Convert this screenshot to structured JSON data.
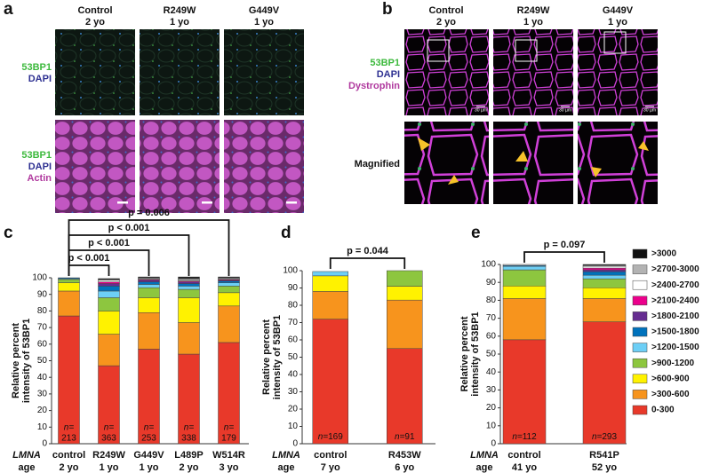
{
  "panels": [
    {
      "letter": "a",
      "columns": [
        [
          "Control",
          "2 yo"
        ],
        [
          "R249W",
          "1 yo"
        ],
        [
          "G449V",
          "1 yo"
        ]
      ],
      "rows": [
        [
          "53BP1",
          "DAPI"
        ],
        [
          "53BP1",
          "DAPI",
          "Actin"
        ]
      ]
    },
    {
      "letter": "b",
      "columns": [
        [
          "Control",
          "2 yo"
        ],
        [
          "R249W",
          "1 yo"
        ],
        [
          "G449V",
          "1 yo"
        ]
      ],
      "rows": [
        [
          "53BP1",
          "DAPI",
          "Dystrophin"
        ],
        [
          "Magnified"
        ]
      ],
      "scale": "30 µm"
    }
  ],
  "chart_data": [
    {
      "type": "bar",
      "stacked": true,
      "letter": "c",
      "ylabel": [
        "Relative percent",
        "intensity of 53BP1"
      ],
      "ylim": [
        0,
        100
      ],
      "yticks": [
        0,
        10,
        20,
        30,
        40,
        50,
        60,
        70,
        80,
        90,
        100
      ],
      "row_labels": [
        "LMNA",
        "age"
      ],
      "categories": [
        "control",
        "R249W",
        "G449V",
        "L489P",
        "W514R"
      ],
      "ages": [
        "2 yo",
        "1 yo",
        "1 yo",
        "2 yo",
        "3 yo"
      ],
      "n_prefix": "n=",
      "n": [
        213,
        363,
        253,
        338,
        179
      ],
      "annotations": [
        {
          "text": "p < 0.001",
          "between": [
            "control",
            "R249W"
          ]
        },
        {
          "text": "p < 0.001",
          "between": [
            "control",
            "G449V"
          ]
        },
        {
          "text": "p < 0.001",
          "between": [
            "control",
            "L489P"
          ]
        },
        {
          "text": "p = 0.006",
          "between": [
            "control",
            "W514R"
          ]
        }
      ],
      "series": [
        {
          "color": "#e8392a",
          "values": [
            77,
            47,
            57,
            54,
            61
          ]
        },
        {
          "color": "#f7941d",
          "values": [
            15,
            19,
            22,
            19,
            22
          ]
        },
        {
          "color": "#fff200",
          "values": [
            5,
            14,
            9,
            15,
            8
          ]
        },
        {
          "color": "#8dc63f",
          "values": [
            2,
            8,
            6,
            5,
            4
          ]
        },
        {
          "color": "#6dcff6",
          "values": [
            0.5,
            4,
            2,
            2,
            2
          ]
        },
        {
          "color": "#0072bc",
          "values": [
            0.5,
            3,
            1.5,
            1.5,
            1
          ]
        },
        {
          "color": "#662d91",
          "values": [
            0,
            1.5,
            1,
            1,
            0.5
          ]
        },
        {
          "color": "#ec008c",
          "values": [
            0,
            1,
            0.5,
            0.5,
            0.5
          ]
        },
        {
          "color": "#ffffff",
          "values": [
            0,
            1,
            0.5,
            0.5,
            0.5
          ]
        },
        {
          "color": "#b3b3b3",
          "values": [
            0,
            0.5,
            0.5,
            1,
            0.5
          ]
        },
        {
          "color": "#111111",
          "values": [
            0,
            0.5,
            0.5,
            1,
            0.5
          ]
        }
      ]
    },
    {
      "type": "bar",
      "stacked": true,
      "letter": "d",
      "ylabel": [
        "Relative percent",
        "intensity of 53BP1"
      ],
      "ylim": [
        0,
        100
      ],
      "yticks": [
        0,
        10,
        20,
        30,
        40,
        50,
        60,
        70,
        80,
        90,
        100
      ],
      "row_labels": [
        "LMNA",
        "age"
      ],
      "categories": [
        "control",
        "R453W"
      ],
      "ages": [
        "7 yo",
        "6 yo"
      ],
      "n_prefix": "n=",
      "n": [
        169,
        91
      ],
      "annotations": [
        {
          "text": "p = 0.044",
          "between": [
            "control",
            "R453W"
          ]
        }
      ],
      "series": [
        {
          "color": "#e8392a",
          "values": [
            72,
            55
          ]
        },
        {
          "color": "#f7941d",
          "values": [
            16,
            28
          ]
        },
        {
          "color": "#fff200",
          "values": [
            9,
            8
          ]
        },
        {
          "color": "#8dc63f",
          "values": [
            0,
            9
          ]
        },
        {
          "color": "#6dcff6",
          "values": [
            2.5,
            0
          ]
        },
        {
          "color": "#0072bc",
          "values": [
            0,
            0
          ]
        },
        {
          "color": "#662d91",
          "values": [
            0,
            0
          ]
        },
        {
          "color": "#ec008c",
          "values": [
            0,
            0
          ]
        },
        {
          "color": "#ffffff",
          "values": [
            0,
            0
          ]
        },
        {
          "color": "#b3b3b3",
          "values": [
            0,
            0
          ]
        },
        {
          "color": "#111111",
          "values": [
            0,
            0
          ]
        }
      ]
    },
    {
      "type": "bar",
      "stacked": true,
      "letter": "e",
      "ylabel": [
        "Relative percent",
        "intensity of 53BP1"
      ],
      "ylim": [
        0,
        100
      ],
      "yticks": [
        0,
        10,
        20,
        30,
        40,
        50,
        60,
        70,
        80,
        90,
        100
      ],
      "row_labels": [
        "LMNA",
        "age"
      ],
      "categories": [
        "control",
        "R541P"
      ],
      "ages": [
        "41 yo",
        "52 yo"
      ],
      "n_prefix": "n=",
      "n": [
        112,
        293
      ],
      "annotations": [
        {
          "text": "p = 0.097",
          "between": [
            "control",
            "R541P"
          ]
        }
      ],
      "legend": "right",
      "series": [
        {
          "name": "0-300",
          "color": "#e8392a",
          "values": [
            58,
            68
          ]
        },
        {
          "name": ">300-600",
          "color": "#f7941d",
          "values": [
            23,
            13
          ]
        },
        {
          "name": ">600-900",
          "color": "#fff200",
          "values": [
            7,
            6
          ]
        },
        {
          "name": ">900-1200",
          "color": "#8dc63f",
          "values": [
            9,
            5
          ]
        },
        {
          "name": ">1200-1500",
          "color": "#6dcff6",
          "values": [
            2,
            2
          ]
        },
        {
          "name": ">1500-1800",
          "color": "#0072bc",
          "values": [
            0.5,
            2
          ]
        },
        {
          "name": ">1800-2100",
          "color": "#662d91",
          "values": [
            0,
            1
          ]
        },
        {
          "name": ">2100-2400",
          "color": "#ec008c",
          "values": [
            0,
            1
          ]
        },
        {
          "name": ">2400-2700",
          "color": "#ffffff",
          "values": [
            0.5,
            1
          ]
        },
        {
          "name": ">2700-3000",
          "color": "#b3b3b3",
          "values": [
            0,
            0.5
          ]
        },
        {
          "name": ">3000",
          "color": "#111111",
          "values": [
            0,
            0.5
          ]
        }
      ]
    }
  ]
}
